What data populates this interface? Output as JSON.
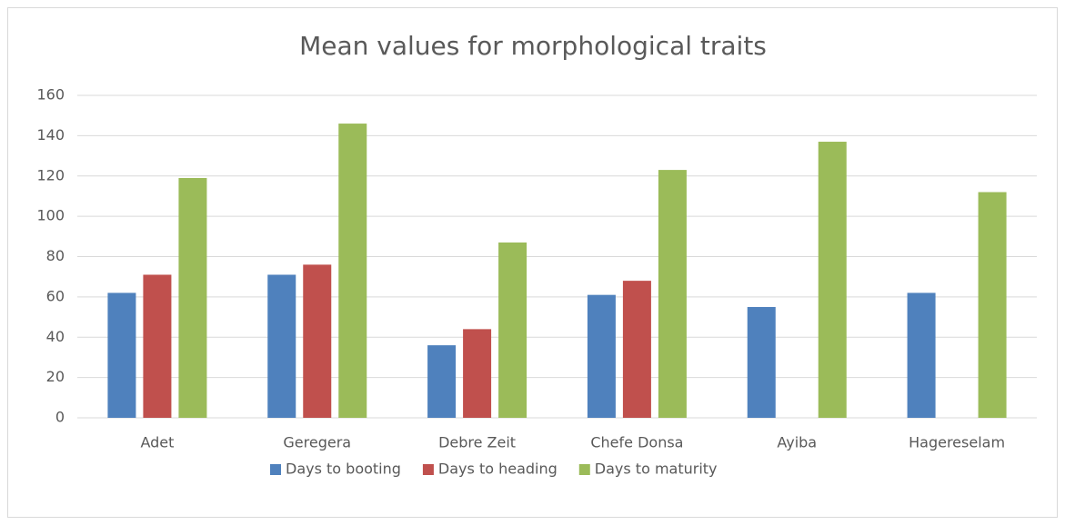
{
  "chart_data": {
    "type": "bar",
    "title": "Mean values for morphological traits",
    "categories": [
      "Adet",
      "Geregera",
      "Debre Zeit",
      "Chefe Donsa",
      "Ayiba",
      "Hagereselam"
    ],
    "series": [
      {
        "name": "Days to booting",
        "color": "#4f81bd",
        "values": [
          62,
          71,
          36,
          61,
          55,
          62
        ]
      },
      {
        "name": "Days to heading",
        "color": "#c0504d",
        "values": [
          71,
          76,
          44,
          68,
          null,
          null
        ]
      },
      {
        "name": "Days to maturity",
        "color": "#9bbb59",
        "values": [
          119,
          146,
          87,
          123,
          137,
          112
        ]
      }
    ],
    "ylim": [
      0,
      160
    ],
    "yticks": [
      0,
      20,
      40,
      60,
      80,
      100,
      120,
      140,
      160
    ],
    "grid": true,
    "legend": "bottom"
  }
}
